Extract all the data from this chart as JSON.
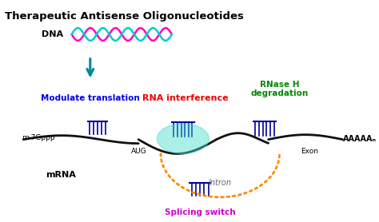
{
  "title": "Therapeutic Antisense Oligonucleotides",
  "title_fontsize": 9.5,
  "title_color": "#000000",
  "bg_color": "#ffffff",
  "dna_label": "DNA",
  "dna_color1": "#ff00cc",
  "dna_color2": "#00cccc",
  "arrow_teal": "#008899",
  "mrna_label": "mRNA",
  "m7gppp_label": "m·7Gppp",
  "aug_label": "AUG",
  "aaaaaa_label": "AAAAAₙ",
  "exon_label": "Exon",
  "intron_label": "Intron",
  "modulate_label": "Modulate translation",
  "rna_interference_label": "RNA interference",
  "rnase_label": "RNase H\ndegradation",
  "splicing_label": "Splicing switch",
  "modulate_color": "#0000ee",
  "rna_color": "#ee0000",
  "rnase_color": "#008800",
  "splicing_color": "#cc00cc",
  "aso_color": "#000099",
  "rna_loop_color": "#44ddcc",
  "dotted_color": "#ff8800",
  "mrna_line_color": "#111111"
}
